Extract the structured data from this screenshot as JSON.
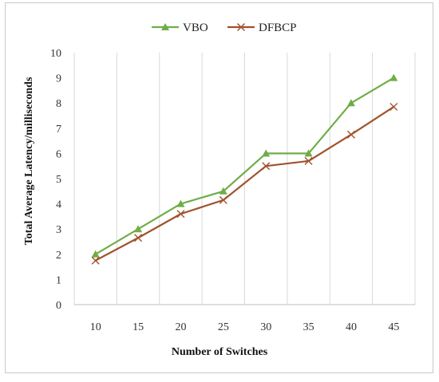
{
  "chart_data": {
    "type": "line",
    "title": "",
    "xlabel": "Number of Switches",
    "ylabel": "Total Average Latency/milliseconds",
    "categories": [
      "10",
      "15",
      "20",
      "25",
      "30",
      "35",
      "40",
      "45"
    ],
    "ylim": [
      0,
      10
    ],
    "yticks": [
      "0",
      "1",
      "2",
      "3",
      "4",
      "5",
      "6",
      "7",
      "8",
      "9",
      "10"
    ],
    "grid": "vertical",
    "legend_position": "top",
    "series": [
      {
        "name": "VBO",
        "color": "#70ad47",
        "marker": "triangle",
        "values": [
          2.0,
          3.0,
          4.0,
          4.5,
          6.0,
          6.0,
          8.0,
          9.0
        ]
      },
      {
        "name": "DFBCP",
        "color": "#a0522d",
        "marker": "x",
        "values": [
          1.75,
          2.65,
          3.6,
          4.15,
          5.5,
          5.7,
          6.75,
          7.85
        ]
      }
    ]
  }
}
